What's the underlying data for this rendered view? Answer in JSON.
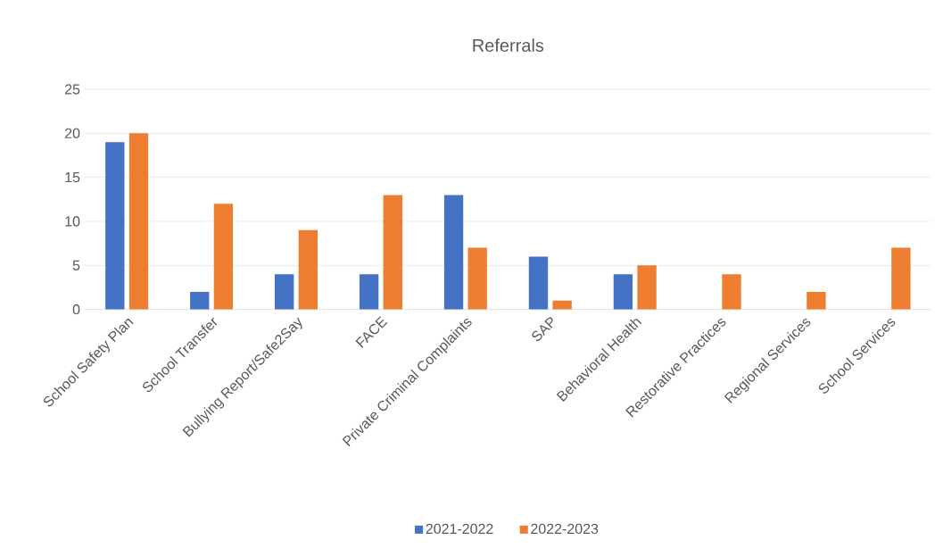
{
  "chart_data": {
    "type": "bar",
    "title": "Referrals",
    "categories": [
      "School Safety Plan",
      "School Transfer",
      "Bullying Report/Safe2Say",
      "FACE",
      "Private Criminal Complaints",
      "SAP",
      "Behavioral Health",
      "Restorative Practices",
      "Regional Services",
      "School Services"
    ],
    "series": [
      {
        "name": "2021-2022",
        "color": "#4472c4",
        "values": [
          19,
          2,
          4,
          4,
          13,
          6,
          4,
          null,
          null,
          null
        ]
      },
      {
        "name": "2022-2023",
        "color": "#ed7d31",
        "values": [
          20,
          12,
          9,
          13,
          7,
          1,
          5,
          4,
          2,
          7
        ]
      }
    ],
    "ylim": [
      0,
      25
    ],
    "yticks": [
      0,
      5,
      10,
      15,
      20,
      25
    ],
    "grid": "y",
    "legend": "bottom"
  }
}
